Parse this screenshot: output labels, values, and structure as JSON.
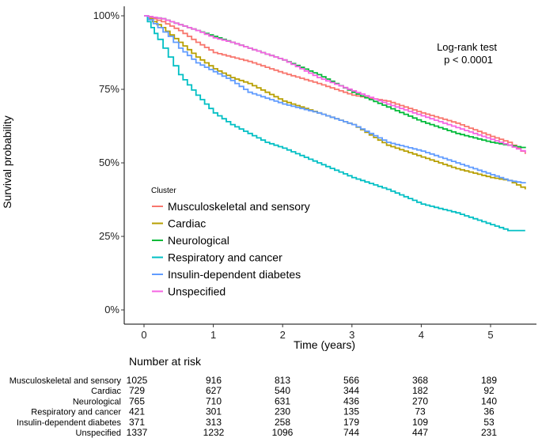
{
  "chart_data": {
    "type": "line",
    "xlabel": "Time (years)",
    "ylabel": "Survival probability",
    "xlim": [
      0,
      5.5
    ],
    "ylim": [
      0,
      1
    ],
    "x_ticks": [
      0,
      1,
      2,
      3,
      4,
      5
    ],
    "y_ticks": [
      0,
      0.25,
      0.5,
      0.75,
      1
    ],
    "y_tick_labels": [
      "0%",
      "25%",
      "50%",
      "75%",
      "100%"
    ],
    "grid": false,
    "legend_title": "Cluster",
    "legend_position": "bottom-left (inside plot)",
    "annotation": [
      "Log-rank test",
      "p < 0.0001"
    ],
    "series": [
      {
        "name": "Musculoskeletal and sensory",
        "color": "#F8766D",
        "x": [
          0,
          0.25,
          0.5,
          0.75,
          1,
          1.25,
          1.5,
          2,
          2.5,
          3,
          3.5,
          4,
          4.5,
          5,
          5.25,
          5.5
        ],
        "y": [
          1,
          0.98,
          0.95,
          0.91,
          0.875,
          0.86,
          0.845,
          0.805,
          0.77,
          0.73,
          0.71,
          0.67,
          0.635,
          0.59,
          0.57,
          0.53
        ]
      },
      {
        "name": "Cardiac",
        "color": "#B79F00",
        "x": [
          0,
          0.25,
          0.5,
          0.75,
          1,
          1.25,
          1.5,
          2,
          2.5,
          3,
          3.5,
          4,
          4.5,
          5,
          5.25,
          5.5
        ],
        "y": [
          1,
          0.96,
          0.91,
          0.86,
          0.82,
          0.79,
          0.77,
          0.71,
          0.67,
          0.63,
          0.56,
          0.52,
          0.48,
          0.45,
          0.44,
          0.41
        ]
      },
      {
        "name": "Neurological",
        "color": "#00BA38",
        "x": [
          0,
          0.25,
          0.5,
          0.75,
          1,
          1.25,
          1.5,
          2,
          2.5,
          3,
          3.5,
          4,
          4.5,
          5,
          5.25,
          5.5
        ],
        "y": [
          1,
          0.99,
          0.97,
          0.95,
          0.93,
          0.91,
          0.89,
          0.85,
          0.8,
          0.74,
          0.69,
          0.64,
          0.6,
          0.57,
          0.56,
          0.55
        ]
      },
      {
        "name": "Respiratory and cancer",
        "color": "#00BFC4",
        "x": [
          0,
          0.1,
          0.2,
          0.35,
          0.5,
          0.75,
          1,
          1.25,
          1.5,
          1.75,
          2,
          2.5,
          3,
          3.5,
          4,
          4.5,
          5,
          5.25,
          5.5
        ],
        "y": [
          1,
          0.96,
          0.92,
          0.86,
          0.8,
          0.73,
          0.67,
          0.63,
          0.6,
          0.57,
          0.55,
          0.5,
          0.45,
          0.41,
          0.36,
          0.33,
          0.29,
          0.27,
          0.27
        ]
      },
      {
        "name": "Insulin-dependent diabetes",
        "color": "#619CFF",
        "x": [
          0,
          0.2,
          0.35,
          0.5,
          0.75,
          1,
          1.25,
          1.5,
          2,
          2.5,
          3,
          3.5,
          4,
          4.5,
          5,
          5.25,
          5.5
        ],
        "y": [
          1,
          0.96,
          0.93,
          0.89,
          0.84,
          0.81,
          0.78,
          0.74,
          0.7,
          0.67,
          0.63,
          0.57,
          0.54,
          0.5,
          0.46,
          0.44,
          0.43
        ]
      },
      {
        "name": "Unspecified",
        "color": "#F564E3",
        "x": [
          0,
          0.25,
          0.5,
          0.75,
          1,
          1.25,
          1.5,
          2,
          2.5,
          3,
          3.5,
          4,
          4.5,
          5,
          5.25,
          5.5
        ],
        "y": [
          1,
          0.99,
          0.97,
          0.95,
          0.925,
          0.91,
          0.89,
          0.85,
          0.79,
          0.745,
          0.7,
          0.66,
          0.62,
          0.58,
          0.56,
          0.535
        ]
      }
    ],
    "risk_table": {
      "title": "Number at risk",
      "times": [
        0,
        1,
        2,
        3,
        4,
        5
      ],
      "rows": [
        {
          "name": "Musculoskeletal and sensory",
          "values": [
            1025,
            916,
            813,
            566,
            368,
            189
          ]
        },
        {
          "name": "Cardiac",
          "values": [
            729,
            627,
            540,
            344,
            182,
            92
          ]
        },
        {
          "name": "Neurological",
          "values": [
            765,
            710,
            631,
            436,
            270,
            140
          ]
        },
        {
          "name": "Respiratory and cancer",
          "values": [
            421,
            301,
            230,
            135,
            73,
            36
          ]
        },
        {
          "name": "Insulin-dependent diabetes",
          "values": [
            371,
            313,
            258,
            179,
            109,
            53
          ]
        },
        {
          "name": "Unspecified",
          "values": [
            1337,
            1232,
            1096,
            744,
            447,
            231
          ]
        }
      ]
    }
  }
}
